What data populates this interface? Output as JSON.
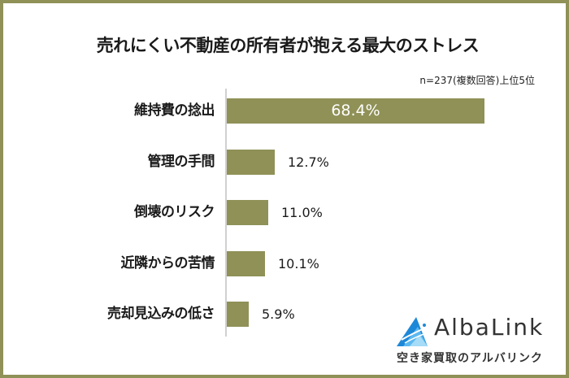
{
  "chart_data": {
    "type": "bar",
    "orientation": "horizontal",
    "title": "売れにくい不動産の所有者が抱える最大のストレス",
    "subtitle": "n=237(複数回答)上位5位",
    "categories": [
      "維持費の捻出",
      "管理の手間",
      "倒壊のリスク",
      "近隣からの苦情",
      "売却見込みの低さ"
    ],
    "values": [
      68.4,
      12.7,
      11.0,
      10.1,
      5.9
    ],
    "value_labels": [
      "68.4%",
      "12.7%",
      "11.0%",
      "10.1%",
      "5.9%"
    ],
    "unit": "%",
    "xlabel": "",
    "ylabel": "",
    "grid": false,
    "legend": null,
    "bar_color": "#8f9157"
  },
  "colors": {
    "border": "#8f9157",
    "bar": "#8f9157",
    "axis": "#d0d0d0",
    "text": "#1a1a1a",
    "logo_blue": "#1e88d8"
  },
  "logo": {
    "icon": "triangle-mountain-icon",
    "name": "AlbaLink",
    "tagline": "空き家買取のアルバリンク"
  }
}
